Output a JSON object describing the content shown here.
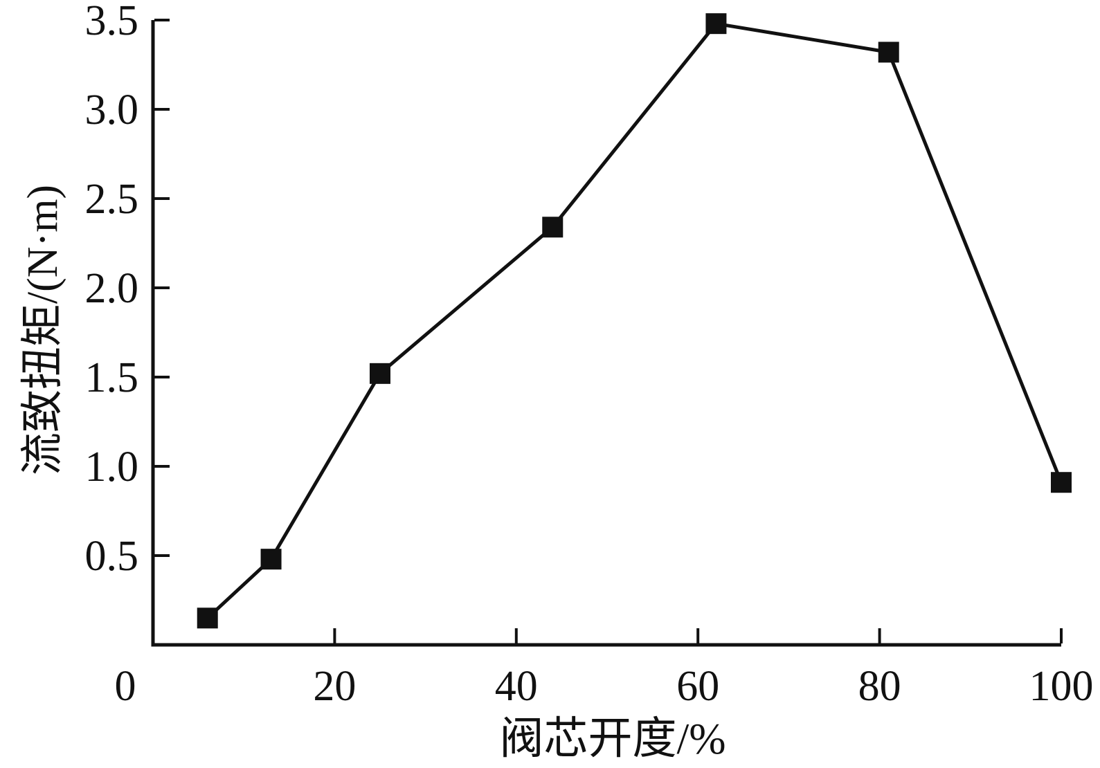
{
  "chart_data": {
    "type": "line",
    "title": "",
    "xlabel": "阀芯开度/%",
    "ylabel": "流致扭矩/(N·m)",
    "series": [
      {
        "name": "流致扭矩",
        "x": [
          6,
          13,
          25,
          44,
          62,
          81,
          100
        ],
        "y": [
          0.15,
          0.48,
          1.52,
          2.34,
          3.48,
          3.32,
          0.91
        ],
        "marker": "filled-square",
        "color": "#111111"
      }
    ],
    "x_ticks": [
      0,
      20,
      40,
      60,
      80,
      100
    ],
    "y_ticks": [
      0.5,
      1.0,
      1.5,
      2.0,
      2.5,
      3.0,
      3.5
    ],
    "xlim": [
      0,
      100
    ],
    "ylim": [
      0,
      3.5
    ],
    "grid": false,
    "legend_position": "none",
    "axis_color": "#111111",
    "background_color": "#ffffff"
  }
}
